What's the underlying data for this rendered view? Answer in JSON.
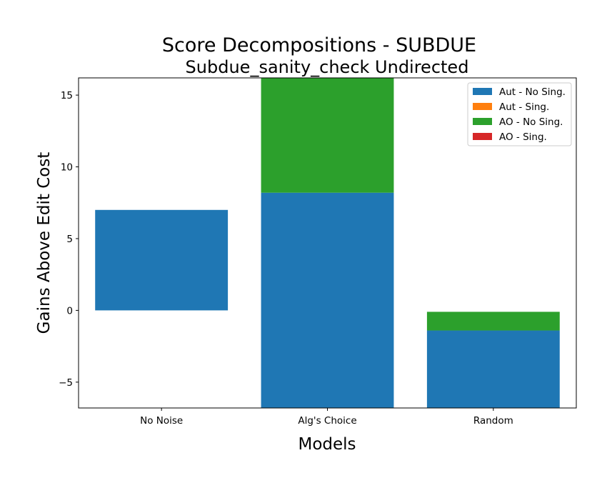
{
  "chart_data": {
    "type": "bar",
    "stacked": true,
    "title": "Score Decompositions - SUBDUE",
    "subtitle": "Subdue_sanity_check Undirected",
    "xlabel": "Models",
    "ylabel": "Gains Above Edit Cost",
    "categories": [
      "No Noise",
      "Alg's Choice",
      "Random"
    ],
    "ylim": [
      -6.8,
      16.2
    ],
    "yticks": [
      -5,
      0,
      5,
      10,
      15
    ],
    "ytick_labels": [
      "−5",
      "0",
      "5",
      "10",
      "15"
    ],
    "grid": false,
    "legend_position": "top-right",
    "series": [
      {
        "name": "Aut - No Sing.",
        "color": "#1f77b4",
        "bottoms": [
          0,
          -6.8,
          -6.8
        ],
        "tops": [
          7.0,
          8.2,
          -1.4
        ]
      },
      {
        "name": "Aut - Sing.",
        "color": "#ff7f0e",
        "bottoms": [
          0,
          0,
          0
        ],
        "tops": [
          0,
          0,
          0
        ]
      },
      {
        "name": "AO - No Sing.",
        "color": "#2ca02c",
        "bottoms": [
          7.0,
          8.2,
          -1.4
        ],
        "tops": [
          7.0,
          16.2,
          -0.1
        ]
      },
      {
        "name": "AO - Sing.",
        "color": "#d62728",
        "bottoms": [
          0,
          0,
          0
        ],
        "tops": [
          0,
          0,
          0
        ]
      }
    ]
  }
}
